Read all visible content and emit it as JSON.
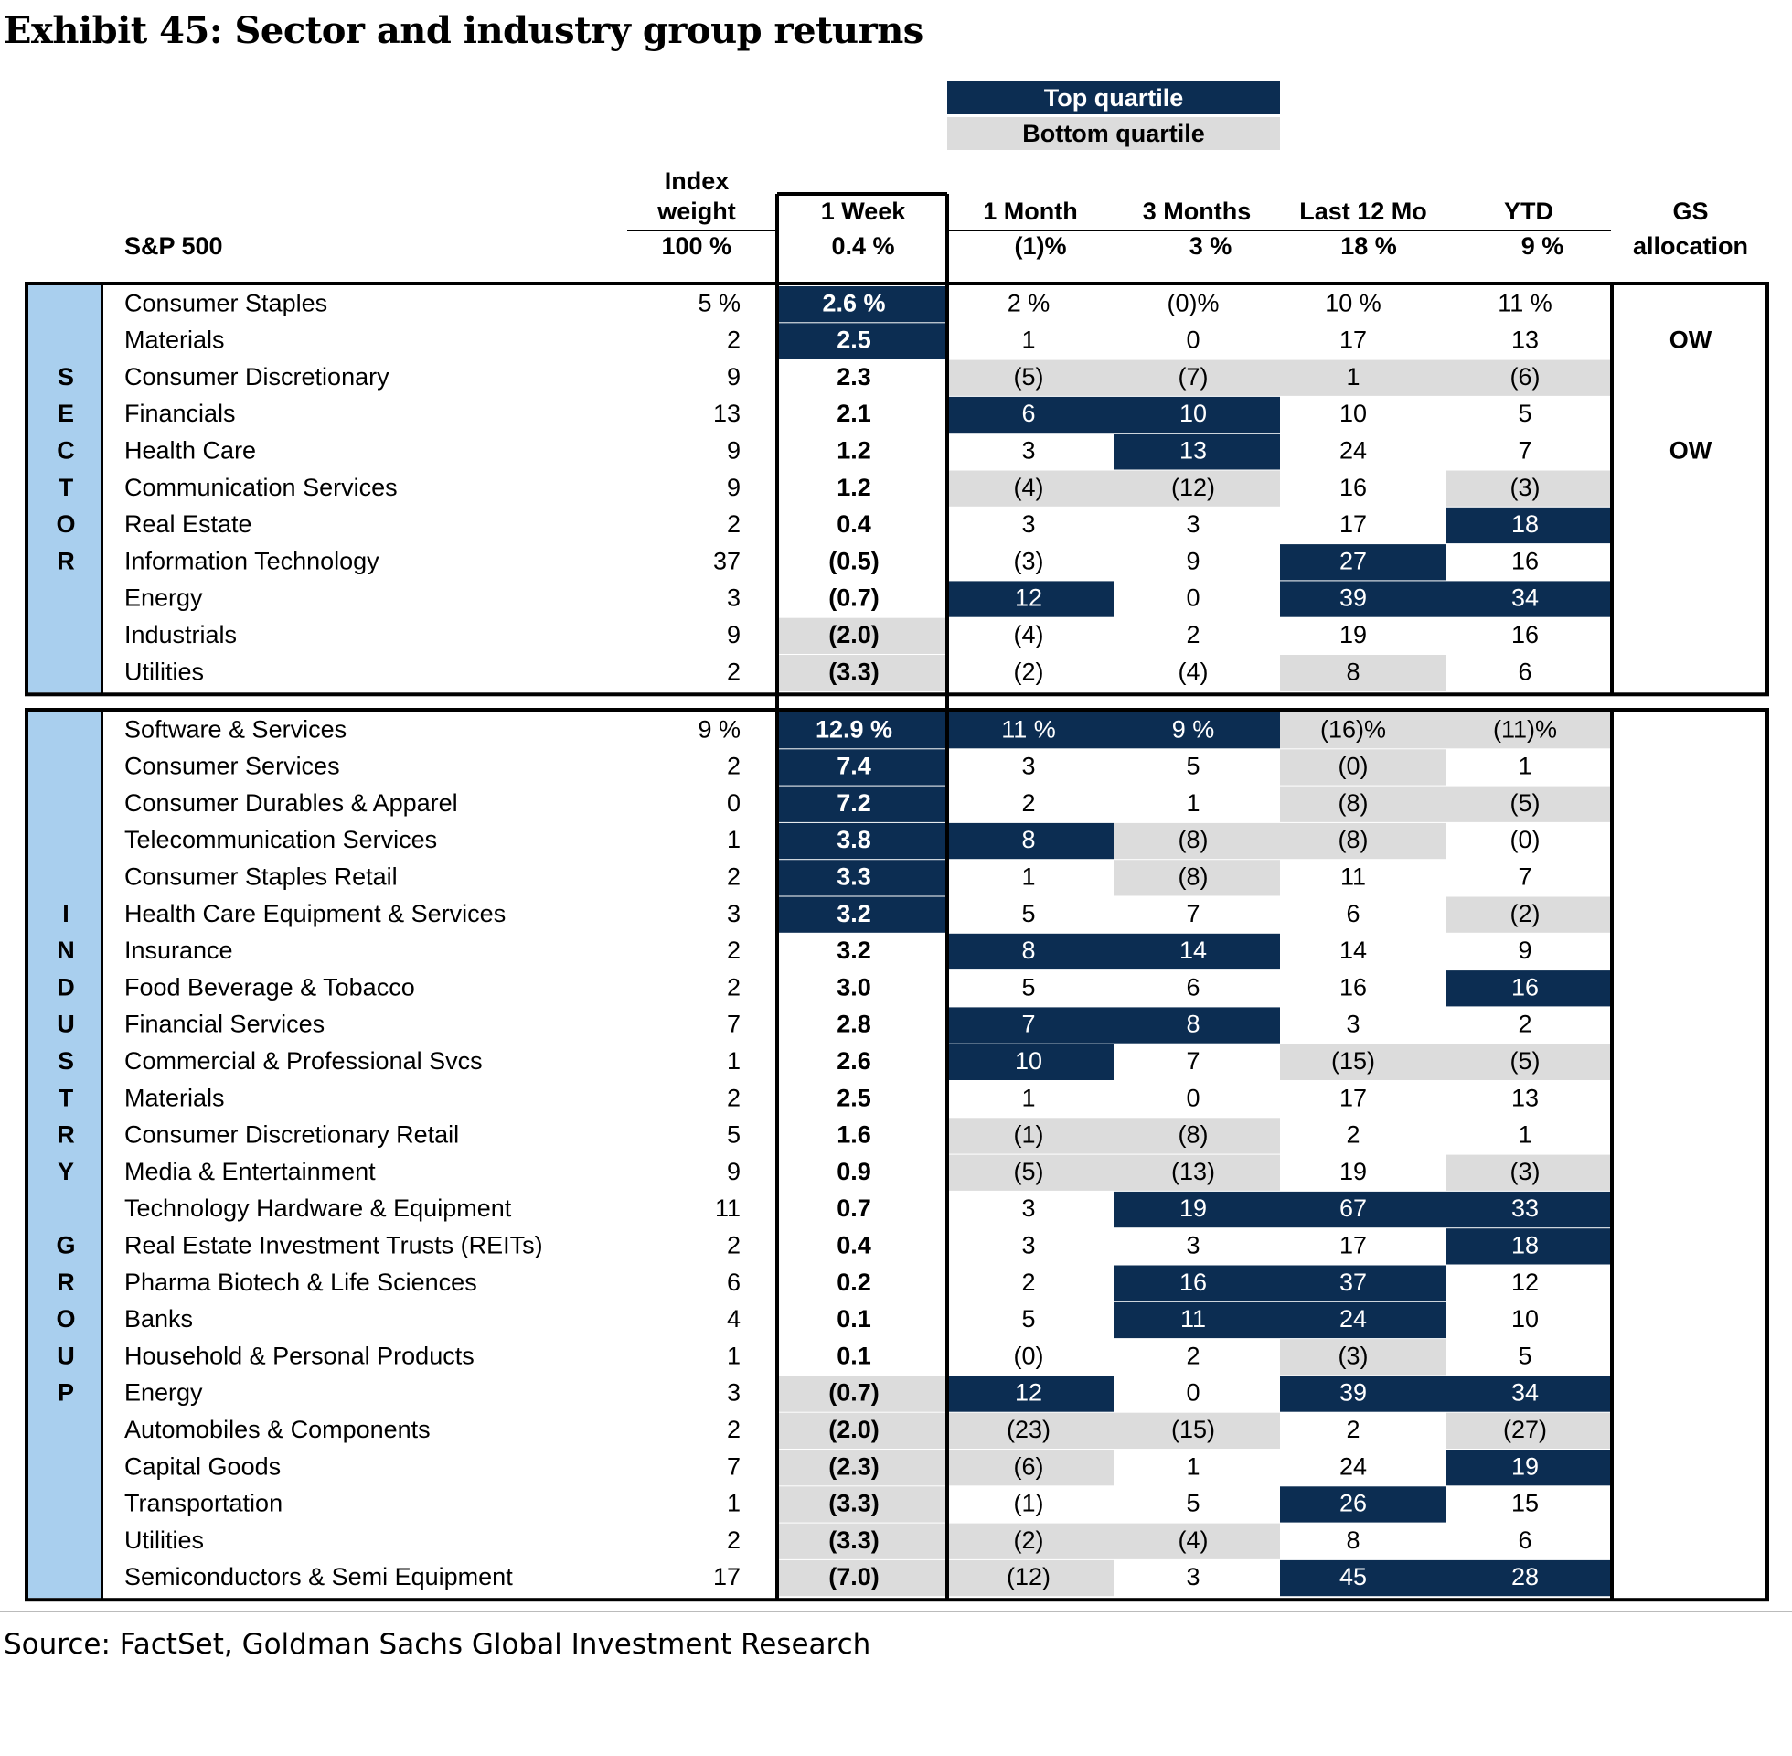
{
  "title": "Exhibit 45: Sector and industry group returns",
  "source": "Source: FactSet, Goldman Sachs Global Investment Research",
  "legend": {
    "top": "Top quartile",
    "bottom": "Bottom quartile"
  },
  "colors": {
    "top": "#0c2d52",
    "bottom": "#dcdcdc",
    "side_label": "#a9cfee"
  },
  "chart_data": {
    "type": "table",
    "columns": [
      "Index weight",
      "1 Week",
      "1 Month",
      "3 Months",
      "Last 12 Mo",
      "YTD",
      "GS allocation"
    ],
    "header_lines": {
      "weight": [
        "Index",
        "weight"
      ],
      "week": "1 Week",
      "month": "1 Month",
      "m3": "3 Months",
      "m12": "Last 12 Mo",
      "ytd": "YTD",
      "gs": [
        "GS",
        "allocation"
      ]
    },
    "benchmark": {
      "name": "S&P 500",
      "cells": [
        "100 %",
        "0.4 %",
        "(1)%",
        "3 %",
        "18 %",
        "9 %",
        ""
      ]
    },
    "sections": [
      {
        "label": "SECTOR",
        "rows": [
          {
            "name": "Consumer Staples",
            "cells": [
              "5 %",
              "2.6 %",
              "2 %",
              "(0)%",
              "10 %",
              "11 %",
              ""
            ],
            "shade": [
              "",
              "T",
              "",
              "",
              "",
              "",
              ""
            ]
          },
          {
            "name": "Materials",
            "cells": [
              "2",
              "2.5",
              "1",
              "0",
              "17",
              "13",
              "OW"
            ],
            "shade": [
              "",
              "T",
              "",
              "",
              "",
              "",
              ""
            ]
          },
          {
            "name": "Consumer Discretionary",
            "cells": [
              "9",
              "2.3",
              "(5)",
              "(7)",
              "1",
              "(6)",
              ""
            ],
            "shade": [
              "",
              "",
              "B",
              "B",
              "B",
              "B",
              ""
            ]
          },
          {
            "name": "Financials",
            "cells": [
              "13",
              "2.1",
              "6",
              "10",
              "10",
              "5",
              ""
            ],
            "shade": [
              "",
              "",
              "T",
              "T",
              "",
              "",
              ""
            ]
          },
          {
            "name": "Health Care",
            "cells": [
              "9",
              "1.2",
              "3",
              "13",
              "24",
              "7",
              "OW"
            ],
            "shade": [
              "",
              "",
              "",
              "T",
              "",
              "",
              ""
            ]
          },
          {
            "name": "Communication Services",
            "cells": [
              "9",
              "1.2",
              "(4)",
              "(12)",
              "16",
              "(3)",
              ""
            ],
            "shade": [
              "",
              "",
              "B",
              "B",
              "",
              "B",
              ""
            ]
          },
          {
            "name": "Real Estate",
            "cells": [
              "2",
              "0.4",
              "3",
              "3",
              "17",
              "18",
              ""
            ],
            "shade": [
              "",
              "",
              "",
              "",
              "",
              "T",
              ""
            ]
          },
          {
            "name": "Information Technology",
            "cells": [
              "37",
              "(0.5)",
              "(3)",
              "9",
              "27",
              "16",
              ""
            ],
            "shade": [
              "",
              "",
              "",
              "",
              "T",
              "",
              ""
            ]
          },
          {
            "name": "Energy",
            "cells": [
              "3",
              "(0.7)",
              "12",
              "0",
              "39",
              "34",
              ""
            ],
            "shade": [
              "",
              "",
              "T",
              "",
              "T",
              "T",
              ""
            ]
          },
          {
            "name": "Industrials",
            "cells": [
              "9",
              "(2.0)",
              "(4)",
              "2",
              "19",
              "16",
              ""
            ],
            "shade": [
              "",
              "B",
              "",
              "",
              "",
              "",
              ""
            ]
          },
          {
            "name": "Utilities",
            "cells": [
              "2",
              "(3.3)",
              "(2)",
              "(4)",
              "8",
              "6",
              ""
            ],
            "shade": [
              "",
              "B",
              "",
              "",
              "B",
              "",
              ""
            ]
          }
        ]
      },
      {
        "label": "INDUSTRY GROUP",
        "rows": [
          {
            "name": "Software & Services",
            "cells": [
              "9 %",
              "12.9 %",
              "11 %",
              "9 %",
              "(16)%",
              "(11)%",
              ""
            ],
            "shade": [
              "",
              "T",
              "T",
              "T",
              "B",
              "B",
              ""
            ]
          },
          {
            "name": "Consumer Services",
            "cells": [
              "2",
              "7.4",
              "3",
              "5",
              "(0)",
              "1",
              ""
            ],
            "shade": [
              "",
              "T",
              "",
              "",
              "B",
              "",
              ""
            ]
          },
          {
            "name": "Consumer Durables & Apparel",
            "cells": [
              "0",
              "7.2",
              "2",
              "1",
              "(8)",
              "(5)",
              ""
            ],
            "shade": [
              "",
              "T",
              "",
              "",
              "B",
              "B",
              ""
            ]
          },
          {
            "name": "Telecommunication Services",
            "cells": [
              "1",
              "3.8",
              "8",
              "(8)",
              "(8)",
              "(0)",
              ""
            ],
            "shade": [
              "",
              "T",
              "T",
              "B",
              "B",
              "",
              ""
            ]
          },
          {
            "name": "Consumer Staples Retail",
            "cells": [
              "2",
              "3.3",
              "1",
              "(8)",
              "11",
              "7",
              ""
            ],
            "shade": [
              "",
              "T",
              "",
              "B",
              "",
              "",
              ""
            ]
          },
          {
            "name": "Health Care Equipment & Services",
            "cells": [
              "3",
              "3.2",
              "5",
              "7",
              "6",
              "(2)",
              ""
            ],
            "shade": [
              "",
              "T",
              "",
              "",
              "",
              "B",
              ""
            ]
          },
          {
            "name": "Insurance",
            "cells": [
              "2",
              "3.2",
              "8",
              "14",
              "14",
              "9",
              ""
            ],
            "shade": [
              "",
              "",
              "T",
              "T",
              "",
              "",
              ""
            ]
          },
          {
            "name": "Food Beverage & Tobacco",
            "cells": [
              "2",
              "3.0",
              "5",
              "6",
              "16",
              "16",
              ""
            ],
            "shade": [
              "",
              "",
              "",
              "",
              "",
              "T",
              ""
            ]
          },
          {
            "name": "Financial Services",
            "cells": [
              "7",
              "2.8",
              "7",
              "8",
              "3",
              "2",
              ""
            ],
            "shade": [
              "",
              "",
              "T",
              "T",
              "",
              "",
              ""
            ]
          },
          {
            "name": "Commercial & Professional Svcs",
            "cells": [
              "1",
              "2.6",
              "10",
              "7",
              "(15)",
              "(5)",
              ""
            ],
            "shade": [
              "",
              "",
              "T",
              "",
              "B",
              "B",
              ""
            ]
          },
          {
            "name": "Materials",
            "cells": [
              "2",
              "2.5",
              "1",
              "0",
              "17",
              "13",
              ""
            ],
            "shade": [
              "",
              "",
              "",
              "",
              "",
              "",
              ""
            ]
          },
          {
            "name": "Consumer Discretionary Retail",
            "cells": [
              "5",
              "1.6",
              "(1)",
              "(8)",
              "2",
              "1",
              ""
            ],
            "shade": [
              "",
              "",
              "B",
              "B",
              "",
              "",
              ""
            ]
          },
          {
            "name": "Media & Entertainment",
            "cells": [
              "9",
              "0.9",
              "(5)",
              "(13)",
              "19",
              "(3)",
              ""
            ],
            "shade": [
              "",
              "",
              "B",
              "B",
              "",
              "B",
              ""
            ]
          },
          {
            "name": "Technology Hardware & Equipment",
            "cells": [
              "11",
              "0.7",
              "3",
              "19",
              "67",
              "33",
              ""
            ],
            "shade": [
              "",
              "",
              "",
              "T",
              "T",
              "T",
              ""
            ]
          },
          {
            "name": "Real Estate Investment Trusts (REITs)",
            "cells": [
              "2",
              "0.4",
              "3",
              "3",
              "17",
              "18",
              ""
            ],
            "shade": [
              "",
              "",
              "",
              "",
              "",
              "T",
              ""
            ]
          },
          {
            "name": "Pharma Biotech & Life Sciences",
            "cells": [
              "6",
              "0.2",
              "2",
              "16",
              "37",
              "12",
              ""
            ],
            "shade": [
              "",
              "",
              "",
              "T",
              "T",
              "",
              ""
            ]
          },
          {
            "name": "Banks",
            "cells": [
              "4",
              "0.1",
              "5",
              "11",
              "24",
              "10",
              ""
            ],
            "shade": [
              "",
              "",
              "",
              "T",
              "T",
              "",
              ""
            ]
          },
          {
            "name": "Household & Personal Products",
            "cells": [
              "1",
              "0.1",
              "(0)",
              "2",
              "(3)",
              "5",
              ""
            ],
            "shade": [
              "",
              "",
              "",
              "",
              "B",
              "",
              ""
            ]
          },
          {
            "name": "Energy",
            "cells": [
              "3",
              "(0.7)",
              "12",
              "0",
              "39",
              "34",
              ""
            ],
            "shade": [
              "",
              "B",
              "T",
              "",
              "T",
              "T",
              ""
            ]
          },
          {
            "name": "Automobiles & Components",
            "cells": [
              "2",
              "(2.0)",
              "(23)",
              "(15)",
              "2",
              "(27)",
              ""
            ],
            "shade": [
              "",
              "B",
              "B",
              "B",
              "",
              "B",
              ""
            ]
          },
          {
            "name": "Capital Goods",
            "cells": [
              "7",
              "(2.3)",
              "(6)",
              "1",
              "24",
              "19",
              ""
            ],
            "shade": [
              "",
              "B",
              "B",
              "",
              "",
              "T",
              ""
            ]
          },
          {
            "name": "Transportation",
            "cells": [
              "1",
              "(3.3)",
              "(1)",
              "5",
              "26",
              "15",
              ""
            ],
            "shade": [
              "",
              "B",
              "",
              "",
              "T",
              "",
              ""
            ]
          },
          {
            "name": "Utilities",
            "cells": [
              "2",
              "(3.3)",
              "(2)",
              "(4)",
              "8",
              "6",
              ""
            ],
            "shade": [
              "",
              "B",
              "B",
              "B",
              "",
              "",
              ""
            ]
          },
          {
            "name": "Semiconductors & Semi Equipment",
            "cells": [
              "17",
              "(7.0)",
              "(12)",
              "3",
              "45",
              "28",
              ""
            ],
            "shade": [
              "",
              "B",
              "B",
              "",
              "T",
              "T",
              ""
            ]
          }
        ]
      }
    ]
  }
}
